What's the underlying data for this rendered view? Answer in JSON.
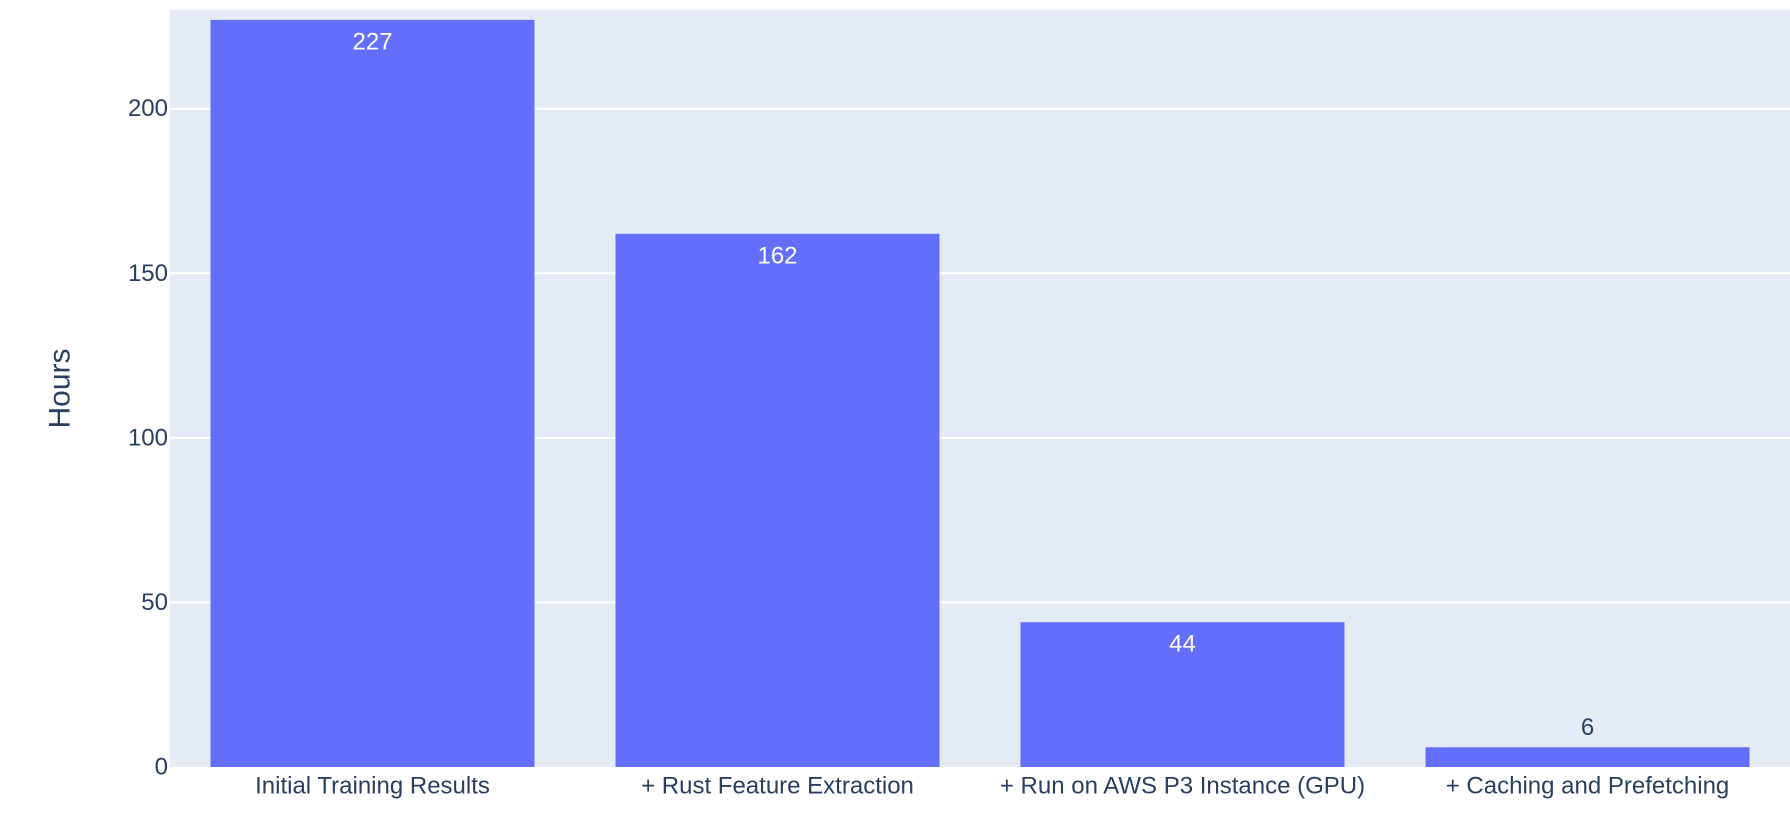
{
  "chart_data": {
    "type": "bar",
    "title": "",
    "xlabel": "",
    "ylabel": "Hours",
    "categories": [
      "Initial Training Results",
      "+ Rust Feature Extraction",
      "+ Run on AWS P3 Instance (GPU)",
      "+ Caching and Prefetching"
    ],
    "values": [
      227,
      162,
      44,
      6
    ],
    "data_labels": [
      "227",
      "162",
      "44",
      "6"
    ],
    "ylim": [
      0,
      230
    ],
    "yticks": [
      0,
      50,
      100,
      150,
      200
    ],
    "ytick_labels": [
      "0",
      "50",
      "100",
      "150",
      "200"
    ],
    "grid": true,
    "legend": "none",
    "colors": {
      "bar": "#636efa",
      "plot_bg": "#e5ecf6",
      "grid": "#ffffff",
      "text": "#2a3f5f",
      "inside_label": "#ffffff"
    }
  }
}
